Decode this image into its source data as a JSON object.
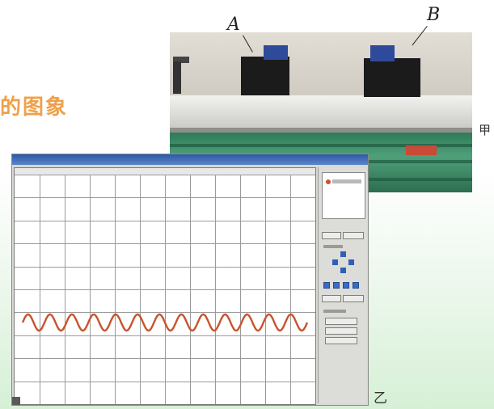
{
  "heading": {
    "text": "的图象",
    "color": "#f0a04a"
  },
  "photo": {
    "label_a": "A",
    "label_b": "B",
    "figure_label": "甲"
  },
  "window": {
    "figure_label": "乙"
  },
  "plot": {
    "grid_columns": 12,
    "grid_rows": 10,
    "wave_color": "#c8532c",
    "wave_cycles": 13
  },
  "icons": {
    "direction_pad": "arrow-cross-icon",
    "legend_marker": "red-dot-icon"
  }
}
